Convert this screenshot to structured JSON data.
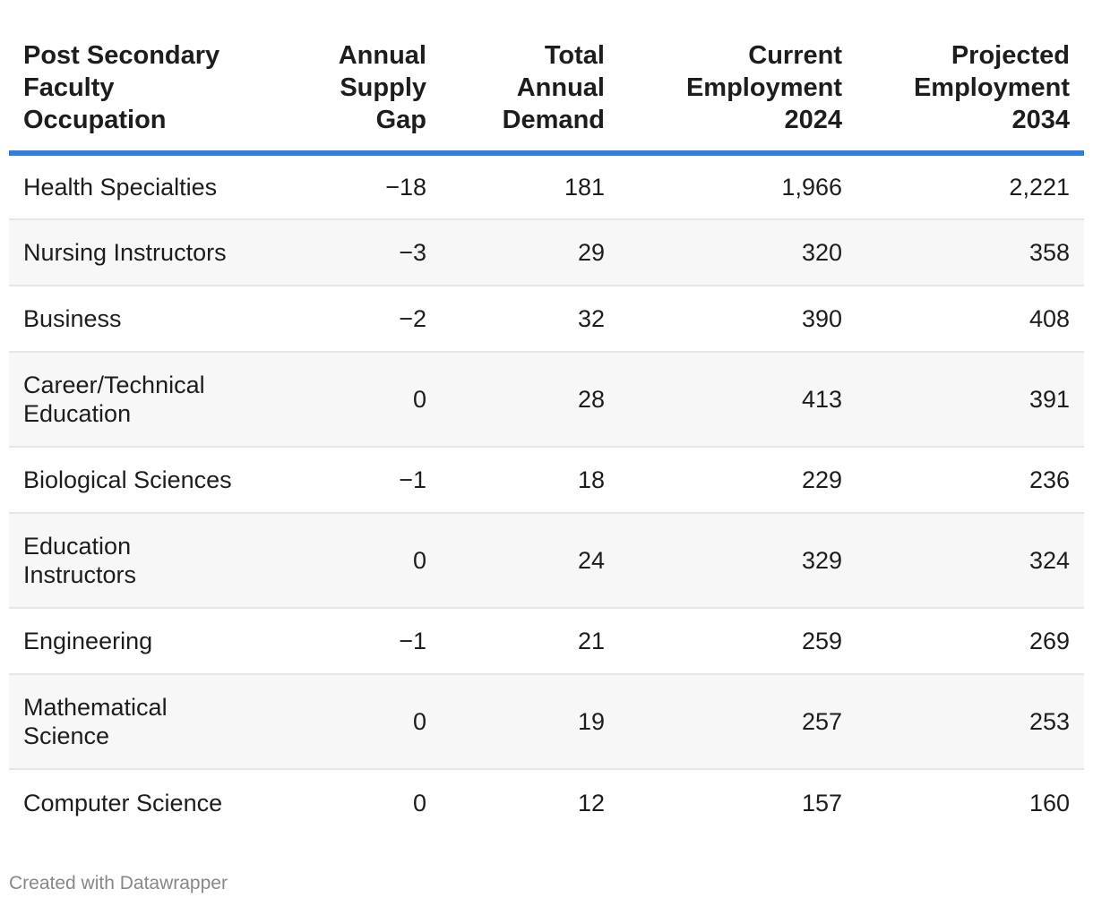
{
  "chart_data": {
    "type": "table",
    "columns": [
      "Post Secondary Faculty Occupation",
      "Annual Supply Gap",
      "Total Annual Demand",
      "Current Employment 2024",
      "Projected Employment 2034"
    ],
    "rows": [
      [
        "Health Specialties",
        "−18",
        "181",
        "1,966",
        "2,221"
      ],
      [
        "Nursing Instructors",
        "−3",
        "29",
        "320",
        "358"
      ],
      [
        "Business",
        "−2",
        "32",
        "390",
        "408"
      ],
      [
        "Career/Technical Education",
        "0",
        "28",
        "413",
        "391"
      ],
      [
        "Biological Sciences",
        "−1",
        "18",
        "229",
        "236"
      ],
      [
        "Education Instructors",
        "0",
        "24",
        "329",
        "324"
      ],
      [
        "Engineering",
        "−1",
        "21",
        "259",
        "269"
      ],
      [
        "Mathematical Science",
        "0",
        "19",
        "257",
        "253"
      ],
      [
        "Computer Science",
        "0",
        "12",
        "157",
        "160"
      ]
    ],
    "colors": {
      "header_rule": "#2f80dd",
      "stripe": "#f7f7f7",
      "row_border": "#e6e6e6",
      "credit_text": "#888888"
    }
  },
  "footer": {
    "credit": "Created with Datawrapper"
  }
}
